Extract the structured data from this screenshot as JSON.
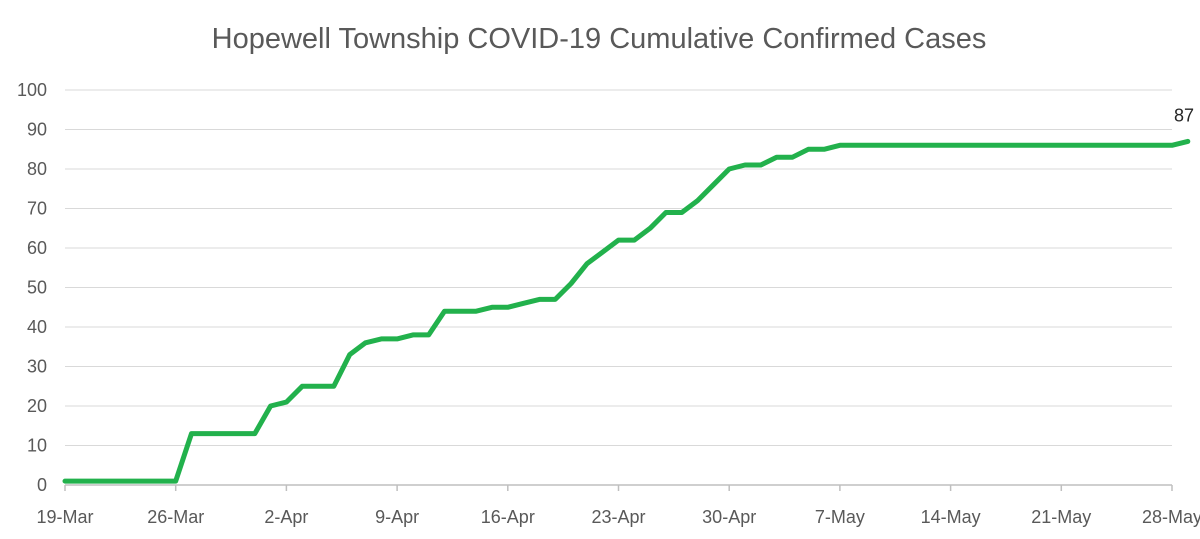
{
  "colors": {
    "series_line": "#22b14c",
    "gridline": "#d9d9d9",
    "axis_line": "#bfbfbf",
    "text": "#595959"
  },
  "chart_data": {
    "type": "line",
    "title": "Hopewell Township COVID-19 Cumulative Confirmed Cases",
    "xlabel": "",
    "ylabel": "",
    "x_type": "date",
    "x_ticks": [
      "19-Mar",
      "26-Mar",
      "2-Apr",
      "9-Apr",
      "16-Apr",
      "23-Apr",
      "30-Apr",
      "7-May",
      "14-May",
      "21-May",
      "28-May"
    ],
    "ylim": [
      0,
      100
    ],
    "y_ticks": [
      0,
      10,
      20,
      30,
      40,
      50,
      60,
      70,
      80,
      90,
      100
    ],
    "grid": true,
    "legend": "none",
    "series": [
      {
        "x": [
          "19-Mar",
          "20-Mar",
          "21-Mar",
          "22-Mar",
          "23-Mar",
          "24-Mar",
          "25-Mar",
          "26-Mar",
          "27-Mar",
          "28-Mar",
          "29-Mar",
          "30-Mar",
          "31-Mar",
          "1-Apr",
          "2-Apr",
          "3-Apr",
          "4-Apr",
          "5-Apr",
          "6-Apr",
          "7-Apr",
          "8-Apr",
          "9-Apr",
          "10-Apr",
          "11-Apr",
          "12-Apr",
          "13-Apr",
          "14-Apr",
          "15-Apr",
          "16-Apr",
          "17-Apr",
          "18-Apr",
          "19-Apr",
          "20-Apr",
          "21-Apr",
          "22-Apr",
          "23-Apr",
          "24-Apr",
          "25-Apr",
          "26-Apr",
          "27-Apr",
          "28-Apr",
          "29-Apr",
          "30-Apr",
          "1-May",
          "2-May",
          "3-May",
          "4-May",
          "5-May",
          "6-May",
          "7-May",
          "8-May",
          "9-May",
          "10-May",
          "11-May",
          "12-May",
          "13-May",
          "14-May",
          "15-May",
          "16-May",
          "17-May",
          "18-May",
          "19-May",
          "20-May",
          "21-May",
          "22-May",
          "23-May",
          "24-May",
          "25-May",
          "26-May",
          "27-May",
          "28-May",
          "29-May"
        ],
        "values": [
          1,
          1,
          1,
          1,
          1,
          1,
          1,
          1,
          13,
          13,
          13,
          13,
          13,
          20,
          21,
          25,
          25,
          25,
          33,
          36,
          37,
          37,
          38,
          38,
          44,
          44,
          44,
          45,
          45,
          46,
          47,
          47,
          51,
          56,
          59,
          62,
          62,
          65,
          69,
          69,
          72,
          76,
          80,
          81,
          81,
          83,
          83,
          85,
          85,
          86,
          86,
          86,
          86,
          86,
          86,
          86,
          86,
          86,
          86,
          86,
          86,
          86,
          86,
          86,
          86,
          86,
          86,
          86,
          86,
          86,
          86,
          87
        ]
      }
    ],
    "data_labels": [
      {
        "x": "29-May",
        "text": "87"
      }
    ]
  }
}
